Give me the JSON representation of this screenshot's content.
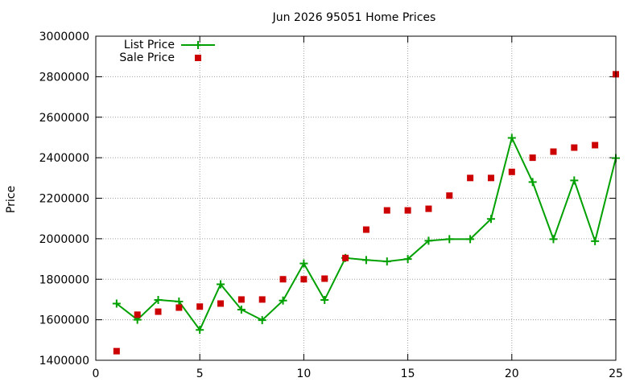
{
  "chart_data": {
    "type": "line",
    "title": "Jun 2026 95051 Home Prices",
    "xlabel": "",
    "ylabel": "Price",
    "xlim": [
      0,
      25
    ],
    "ylim": [
      1400000,
      3000000
    ],
    "xticks": [
      0,
      5,
      10,
      15,
      20,
      25
    ],
    "yticks": [
      1400000,
      1600000,
      1800000,
      2000000,
      2200000,
      2400000,
      2600000,
      2800000,
      3000000
    ],
    "grid": true,
    "legend_position": "top-left",
    "series": [
      {
        "name": "List Price",
        "style": "line-with-plus-markers",
        "color": "#00a000",
        "x": [
          1,
          2,
          3,
          4,
          5,
          6,
          7,
          8,
          9,
          10,
          11,
          12,
          13,
          14,
          15,
          16,
          17,
          18,
          19,
          20,
          21,
          22,
          23,
          24,
          25
        ],
        "values": [
          1680000,
          1600000,
          1698000,
          1690000,
          1550000,
          1775000,
          1650000,
          1598000,
          1695000,
          1878000,
          1698000,
          1905000,
          1895000,
          1888000,
          1900000,
          1990000,
          1998000,
          1998000,
          2098000,
          2498000,
          2280000,
          1998000,
          2288000,
          1988000,
          2398000
        ]
      },
      {
        "name": "Sale Price",
        "style": "square-markers",
        "color": "#cc0000",
        "x": [
          1,
          2,
          3,
          4,
          5,
          6,
          7,
          8,
          9,
          10,
          11,
          12,
          13,
          14,
          15,
          16,
          17,
          18,
          19,
          20,
          21,
          22,
          23,
          24,
          25
        ],
        "values": [
          1445000,
          1625000,
          1640000,
          1660000,
          1665000,
          1680000,
          1700000,
          1700000,
          1800000,
          1800000,
          1803000,
          1905000,
          2045000,
          2140000,
          2140000,
          2148000,
          2213000,
          2300000,
          2300000,
          2330000,
          2400000,
          2430000,
          2450000,
          2462000,
          2812000
        ]
      }
    ]
  }
}
